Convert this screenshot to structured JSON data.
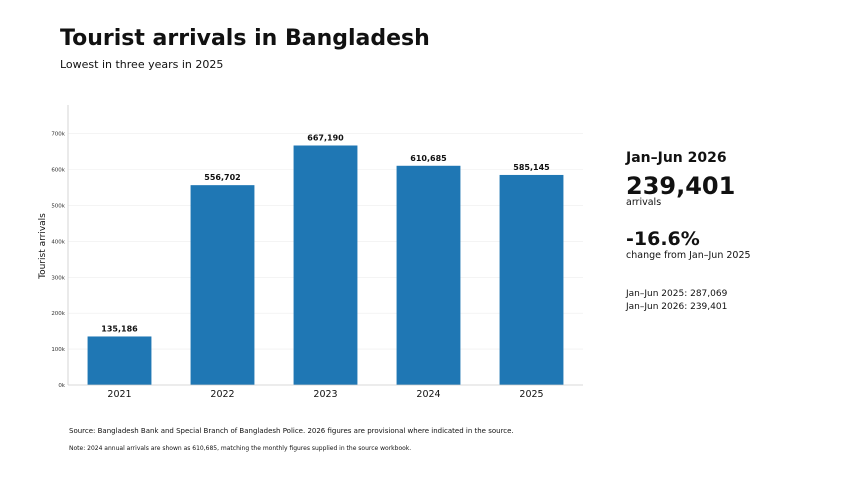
{
  "header": {
    "title": "Tourist arrivals in Bangladesh",
    "subtitle": "Lowest in three years in 2025"
  },
  "chart_data": {
    "type": "bar",
    "title": "Tourist arrivals in Bangladesh",
    "subtitle": "Lowest in three years in 2025",
    "categories": [
      "2021",
      "2022",
      "2023",
      "2024",
      "2025"
    ],
    "values": [
      135186,
      556702,
      667190,
      610685,
      585145
    ],
    "data_labels": [
      "135,186",
      "556,702",
      "667,190",
      "610,685",
      "585,145"
    ],
    "xlabel": "",
    "ylabel": "Tourist arrivals",
    "ylim": [
      0,
      780000
    ],
    "yticks": [
      0,
      100000,
      200000,
      300000,
      400000,
      500000,
      600000,
      700000
    ],
    "ytick_labels": [
      "0k",
      "100k",
      "200k",
      "300k",
      "400k",
      "500k",
      "600k",
      "700k"
    ],
    "grid": "horizontal, faint",
    "bar_color": "#1f77b4"
  },
  "side_panel": {
    "period": "Jan–Jun 2026",
    "big_value": "239,401",
    "big_label": "arrivals",
    "change_value": "-16.6%",
    "change_label": "change from Jan–Jun 2025",
    "line1": "Jan–Jun 2025: 287,069",
    "line2": "Jan–Jun 2026: 239,401"
  },
  "footer": {
    "source": "Source: Bangladesh Bank and Special Branch of Bangladesh Police. 2026 figures are provisional where indicated in the source.",
    "note": "Note: 2024 annual arrivals are shown as 610,685, matching the monthly figures supplied in the source workbook."
  }
}
